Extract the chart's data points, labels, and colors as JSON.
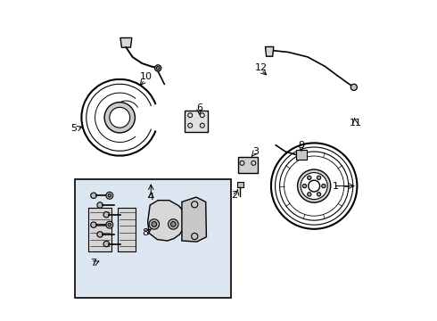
{
  "bg_color": "#ffffff",
  "fig_width": 4.9,
  "fig_height": 3.6,
  "dpi": 100
}
